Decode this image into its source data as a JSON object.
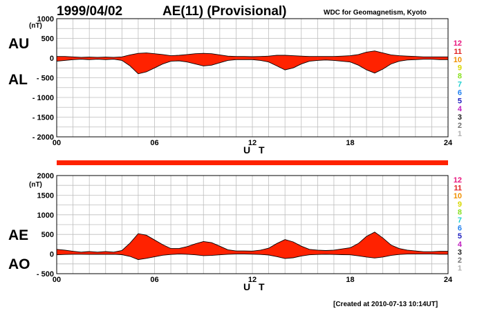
{
  "header": {
    "date": "1999/04/02",
    "title": "AE(11) (Provisional)",
    "org": "WDC for Geomagnetism, Kyoto"
  },
  "footer": {
    "created": "[Created at 2010-07-13 10:14UT]"
  },
  "legend_levels": [
    {
      "label": "12",
      "color": "#e8157d"
    },
    {
      "label": "11",
      "color": "#e02020"
    },
    {
      "label": "10",
      "color": "#f09000"
    },
    {
      "label": "9",
      "color": "#d8d800"
    },
    {
      "label": "8",
      "color": "#88e020"
    },
    {
      "label": "7",
      "color": "#20d0d0"
    },
    {
      "label": "6",
      "color": "#2080f0"
    },
    {
      "label": "5",
      "color": "#2020c0"
    },
    {
      "label": "4",
      "color": "#c020c0"
    },
    {
      "label": "3",
      "color": "#202020"
    },
    {
      "label": "2",
      "color": "#707070"
    },
    {
      "label": "1",
      "color": "#b0b0b0"
    }
  ],
  "chart_data": [
    {
      "type": "area",
      "unit": "(nT)",
      "upper_label": "AU",
      "lower_label": "AL",
      "xlabel": "U T",
      "xlim": [
        0,
        24
      ],
      "x_ticks": [
        "00",
        "06",
        "12",
        "18",
        "24"
      ],
      "ylim": [
        -2000,
        1000
      ],
      "y_ticks": [
        "1000",
        "500",
        "0",
        "- 500",
        "- 1000",
        "- 1500",
        "- 2000"
      ],
      "grid": true,
      "fill_color": "#ff2200",
      "series": [
        {
          "name": "AU",
          "x": [
            0,
            0.5,
            1,
            1.5,
            2,
            2.5,
            3,
            3.5,
            4,
            4.5,
            5,
            5.5,
            6,
            6.5,
            7,
            7.5,
            8,
            8.5,
            9,
            9.5,
            10,
            10.5,
            11,
            11.5,
            12,
            12.5,
            13,
            13.5,
            14,
            14.5,
            15,
            15.5,
            16,
            16.5,
            17,
            17.5,
            18,
            18.5,
            19,
            19.5,
            20,
            20.5,
            21,
            21.5,
            22,
            22.5,
            23,
            23.5,
            24
          ],
          "values": [
            40,
            40,
            30,
            20,
            25,
            20,
            25,
            20,
            30,
            80,
            120,
            130,
            110,
            90,
            60,
            70,
            90,
            110,
            120,
            110,
            80,
            50,
            40,
            40,
            35,
            40,
            50,
            70,
            70,
            60,
            50,
            40,
            40,
            40,
            40,
            50,
            60,
            90,
            150,
            180,
            130,
            80,
            60,
            50,
            40,
            30,
            30,
            30,
            30
          ]
        },
        {
          "name": "AL",
          "x": [
            0,
            0.5,
            1,
            1.5,
            2,
            2.5,
            3,
            3.5,
            4,
            4.5,
            5,
            5.5,
            6,
            6.5,
            7,
            7.5,
            8,
            8.5,
            9,
            9.5,
            10,
            10.5,
            11,
            11.5,
            12,
            12.5,
            13,
            13.5,
            14,
            14.5,
            15,
            15.5,
            16,
            16.5,
            17,
            17.5,
            18,
            18.5,
            19,
            19.5,
            20,
            20.5,
            21,
            21.5,
            22,
            22.5,
            23,
            23.5,
            24
          ],
          "values": [
            -80,
            -60,
            -40,
            -30,
            -40,
            -30,
            -40,
            -30,
            -60,
            -200,
            -400,
            -350,
            -250,
            -150,
            -80,
            -70,
            -100,
            -150,
            -200,
            -180,
            -120,
            -60,
            -40,
            -40,
            -40,
            -60,
            -100,
            -200,
            -300,
            -250,
            -150,
            -80,
            -60,
            -50,
            -60,
            -80,
            -100,
            -180,
            -300,
            -380,
            -280,
            -150,
            -80,
            -50,
            -40,
            -30,
            -30,
            -40,
            -40
          ]
        }
      ]
    },
    {
      "type": "area",
      "unit": "(nT)",
      "upper_label": "AE",
      "lower_label": "AO",
      "xlabel": "U T",
      "xlim": [
        0,
        24
      ],
      "x_ticks": [
        "00",
        "06",
        "12",
        "18",
        "24"
      ],
      "ylim": [
        -500,
        2000
      ],
      "y_ticks": [
        "2000",
        "1500",
        "1000",
        "500",
        "0",
        "- 500"
      ],
      "grid": true,
      "fill_color": "#ff2200",
      "series": [
        {
          "name": "AE",
          "x": [
            0,
            0.5,
            1,
            1.5,
            2,
            2.5,
            3,
            3.5,
            4,
            4.5,
            5,
            5.5,
            6,
            6.5,
            7,
            7.5,
            8,
            8.5,
            9,
            9.5,
            10,
            10.5,
            11,
            11.5,
            12,
            12.5,
            13,
            13.5,
            14,
            14.5,
            15,
            15.5,
            16,
            16.5,
            17,
            17.5,
            18,
            18.5,
            19,
            19.5,
            20,
            20.5,
            21,
            21.5,
            22,
            22.5,
            23,
            23.5,
            24
          ],
          "values": [
            120,
            100,
            70,
            50,
            65,
            50,
            65,
            50,
            90,
            280,
            520,
            480,
            360,
            240,
            140,
            140,
            190,
            260,
            320,
            290,
            200,
            110,
            80,
            80,
            75,
            100,
            150,
            270,
            370,
            310,
            200,
            120,
            100,
            90,
            100,
            130,
            160,
            270,
            450,
            560,
            410,
            230,
            140,
            100,
            80,
            60,
            60,
            70,
            70
          ]
        },
        {
          "name": "AO",
          "x": [
            0,
            0.5,
            1,
            1.5,
            2,
            2.5,
            3,
            3.5,
            4,
            4.5,
            5,
            5.5,
            6,
            6.5,
            7,
            7.5,
            8,
            8.5,
            9,
            9.5,
            10,
            10.5,
            11,
            11.5,
            12,
            12.5,
            13,
            13.5,
            14,
            14.5,
            15,
            15.5,
            16,
            16.5,
            17,
            17.5,
            18,
            18.5,
            19,
            19.5,
            20,
            20.5,
            21,
            21.5,
            22,
            22.5,
            23,
            23.5,
            24
          ],
          "values": [
            -20,
            -10,
            -5,
            -5,
            -8,
            -5,
            -8,
            -5,
            -15,
            -60,
            -140,
            -110,
            -70,
            -30,
            -10,
            0,
            -5,
            -20,
            -40,
            -35,
            -20,
            -5,
            0,
            0,
            -3,
            -10,
            -25,
            -65,
            -115,
            -95,
            -50,
            -20,
            -10,
            -5,
            -10,
            -15,
            -20,
            -45,
            -75,
            -100,
            -75,
            -35,
            -10,
            0,
            0,
            0,
            0,
            -5,
            -5
          ]
        }
      ]
    }
  ]
}
